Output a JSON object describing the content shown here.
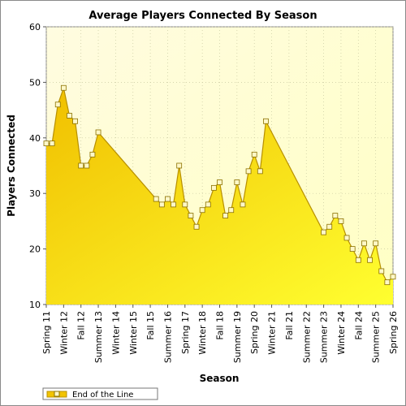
{
  "chart_data": {
    "type": "area",
    "title": "Average Players Connected By Season",
    "xlabel": "Season",
    "ylabel": "Players Connected",
    "ylim": [
      10,
      60
    ],
    "yticks": [
      10,
      20,
      30,
      40,
      50,
      60
    ],
    "xlim": [
      0,
      60
    ],
    "grid": true,
    "legend_position": "bottom-left",
    "colors": {
      "fill_top": "#f2c200",
      "fill_bottom": "#ffff33",
      "line": "#b89000",
      "marker_fill": "#fff8c8",
      "plot_bg_top": "#fffde8",
      "plot_bg_bottom": "#ffffc8"
    },
    "season_ticks": [
      {
        "label": "Spring 11",
        "x": 0
      },
      {
        "label": "Winter 12",
        "x": 3
      },
      {
        "label": "Fall 12",
        "x": 6
      },
      {
        "label": "Summer 13",
        "x": 9
      },
      {
        "label": "Winter 14",
        "x": 12
      },
      {
        "label": "Winter 15",
        "x": 15
      },
      {
        "label": "Fall 15",
        "x": 18
      },
      {
        "label": "Summer 16",
        "x": 21
      },
      {
        "label": "Spring 17",
        "x": 24
      },
      {
        "label": "Winter 18",
        "x": 27
      },
      {
        "label": "Fall 18",
        "x": 30
      },
      {
        "label": "Summer 19",
        "x": 33
      },
      {
        "label": "Spring 20",
        "x": 36
      },
      {
        "label": "Winter 21",
        "x": 39
      },
      {
        "label": "Fall 21",
        "x": 42
      },
      {
        "label": "Summer 22",
        "x": 45
      },
      {
        "label": "Summer 23",
        "x": 48
      },
      {
        "label": "Winter 24",
        "x": 51
      },
      {
        "label": "Fall 24",
        "x": 54
      },
      {
        "label": "Summer 25",
        "x": 57
      },
      {
        "label": "Spring 26",
        "x": 60
      }
    ],
    "series": [
      {
        "name": "End of the Line",
        "points": [
          [
            0,
            39
          ],
          [
            1,
            39
          ],
          [
            2,
            46
          ],
          [
            3,
            49
          ],
          [
            4,
            44
          ],
          [
            5,
            43
          ],
          [
            6,
            35
          ],
          [
            7,
            35
          ],
          [
            8,
            37
          ],
          [
            9,
            41
          ],
          [
            19,
            29
          ],
          [
            20,
            28
          ],
          [
            21,
            29
          ],
          [
            22,
            28
          ],
          [
            23,
            35
          ],
          [
            24,
            28
          ],
          [
            25,
            26
          ],
          [
            26,
            24
          ],
          [
            27,
            27
          ],
          [
            28,
            28
          ],
          [
            29,
            31
          ],
          [
            30,
            32
          ],
          [
            31,
            26
          ],
          [
            32,
            27
          ],
          [
            33,
            32
          ],
          [
            34,
            28
          ],
          [
            35,
            34
          ],
          [
            36,
            37
          ],
          [
            37,
            34
          ],
          [
            38,
            43
          ],
          [
            48,
            23
          ],
          [
            49,
            24
          ],
          [
            50,
            26
          ],
          [
            51,
            25
          ],
          [
            52,
            22
          ],
          [
            53,
            20
          ],
          [
            54,
            18
          ],
          [
            55,
            21
          ],
          [
            56,
            18
          ],
          [
            57,
            21
          ],
          [
            58,
            16
          ],
          [
            59,
            14
          ],
          [
            60,
            15
          ]
        ]
      }
    ]
  }
}
